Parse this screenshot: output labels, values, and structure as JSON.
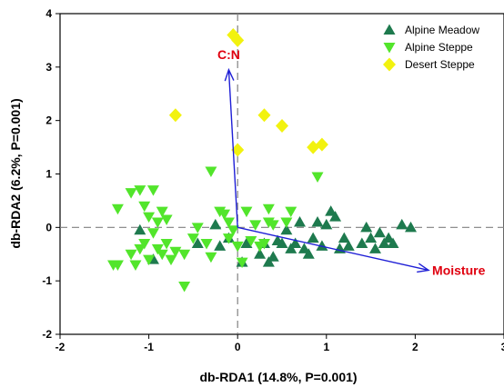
{
  "chart_data": {
    "type": "scatter",
    "xlabel": "db-RDA1 (14.8%, P=0.001)",
    "ylabel": "db-RDA2 (6.2%, P=0.001)",
    "xlim": [
      -2,
      3
    ],
    "ylim": [
      -2,
      4
    ],
    "xticks": [
      -2,
      -1,
      0,
      1,
      2,
      3
    ],
    "yticks": [
      -2,
      -1,
      0,
      1,
      2,
      3,
      4
    ],
    "grid": false,
    "legend_position": "top-right",
    "series": [
      {
        "name": "Alpine Meadow",
        "marker": "triangle-up",
        "color": "#1e7a4e",
        "points": [
          [
            -1.1,
            -0.05
          ],
          [
            -0.95,
            -0.6
          ],
          [
            -0.45,
            -0.3
          ],
          [
            -0.25,
            0.05
          ],
          [
            -0.2,
            -0.35
          ],
          [
            -0.1,
            -0.2
          ],
          [
            0.05,
            -0.65
          ],
          [
            0.1,
            -0.3
          ],
          [
            0.25,
            -0.5
          ],
          [
            0.3,
            -0.3
          ],
          [
            0.35,
            -0.65
          ],
          [
            0.4,
            -0.55
          ],
          [
            0.45,
            -0.25
          ],
          [
            0.5,
            -0.3
          ],
          [
            0.55,
            -0.05
          ],
          [
            0.6,
            -0.4
          ],
          [
            0.65,
            -0.3
          ],
          [
            0.7,
            0.1
          ],
          [
            0.75,
            -0.4
          ],
          [
            0.8,
            -0.5
          ],
          [
            0.85,
            -0.2
          ],
          [
            0.9,
            0.1
          ],
          [
            0.95,
            -0.35
          ],
          [
            1.0,
            0.05
          ],
          [
            1.05,
            0.3
          ],
          [
            1.1,
            0.2
          ],
          [
            1.15,
            -0.4
          ],
          [
            1.2,
            -0.2
          ],
          [
            1.25,
            -0.35
          ],
          [
            1.4,
            -0.3
          ],
          [
            1.45,
            0.0
          ],
          [
            1.5,
            -0.2
          ],
          [
            1.55,
            -0.4
          ],
          [
            1.6,
            -0.1
          ],
          [
            1.65,
            -0.3
          ],
          [
            1.7,
            -0.2
          ],
          [
            1.75,
            -0.3
          ],
          [
            1.85,
            0.05
          ],
          [
            1.95,
            0.0
          ]
        ]
      },
      {
        "name": "Alpine Steppe",
        "marker": "triangle-down",
        "color": "#52e52b",
        "points": [
          [
            -1.4,
            -0.7
          ],
          [
            -1.35,
            0.35
          ],
          [
            -1.35,
            -0.7
          ],
          [
            -1.2,
            -0.5
          ],
          [
            -1.2,
            0.65
          ],
          [
            -1.15,
            -0.7
          ],
          [
            -1.1,
            0.7
          ],
          [
            -1.1,
            -0.4
          ],
          [
            -1.05,
            0.4
          ],
          [
            -1.05,
            -0.3
          ],
          [
            -1.0,
            0.2
          ],
          [
            -1.0,
            -0.6
          ],
          [
            -0.95,
            -0.1
          ],
          [
            -0.95,
            0.7
          ],
          [
            -0.9,
            -0.4
          ],
          [
            -0.9,
            0.1
          ],
          [
            -0.85,
            0.3
          ],
          [
            -0.85,
            -0.5
          ],
          [
            -0.8,
            -0.3
          ],
          [
            -0.8,
            0.15
          ],
          [
            -0.75,
            -0.6
          ],
          [
            -0.7,
            -0.45
          ],
          [
            -0.6,
            -0.5
          ],
          [
            -0.6,
            -1.1
          ],
          [
            -0.5,
            -0.2
          ],
          [
            -0.45,
            0.0
          ],
          [
            -0.35,
            -0.3
          ],
          [
            -0.3,
            -0.55
          ],
          [
            -0.2,
            0.3
          ],
          [
            -0.15,
            0.25
          ],
          [
            -0.1,
            0.1
          ],
          [
            -0.1,
            -0.2
          ],
          [
            -0.05,
            -0.05
          ],
          [
            0.0,
            -0.35
          ],
          [
            0.05,
            -0.65
          ],
          [
            0.1,
            0.3
          ],
          [
            0.15,
            -0.25
          ],
          [
            0.2,
            0.05
          ],
          [
            0.25,
            -0.35
          ],
          [
            0.3,
            -0.3
          ],
          [
            0.35,
            0.1
          ],
          [
            0.4,
            0.05
          ],
          [
            0.55,
            0.1
          ],
          [
            0.6,
            0.3
          ],
          [
            -0.3,
            1.05
          ],
          [
            0.35,
            0.35
          ],
          [
            0.9,
            0.95
          ]
        ]
      },
      {
        "name": "Desert Steppe",
        "marker": "diamond",
        "color": "#f2f20f",
        "points": [
          [
            -0.05,
            3.6
          ],
          [
            0.0,
            3.5
          ],
          [
            -0.7,
            2.1
          ],
          [
            0.3,
            2.1
          ],
          [
            0.5,
            1.9
          ],
          [
            0.0,
            1.45
          ],
          [
            0.85,
            1.5
          ],
          [
            0.95,
            1.55
          ]
        ]
      }
    ],
    "vectors": [
      {
        "name": "C:N",
        "x": -0.1,
        "y": 2.95,
        "color": "#e0000f"
      },
      {
        "name": "Moisture",
        "x": 2.15,
        "y": -0.8,
        "color": "#e0000f"
      }
    ]
  }
}
